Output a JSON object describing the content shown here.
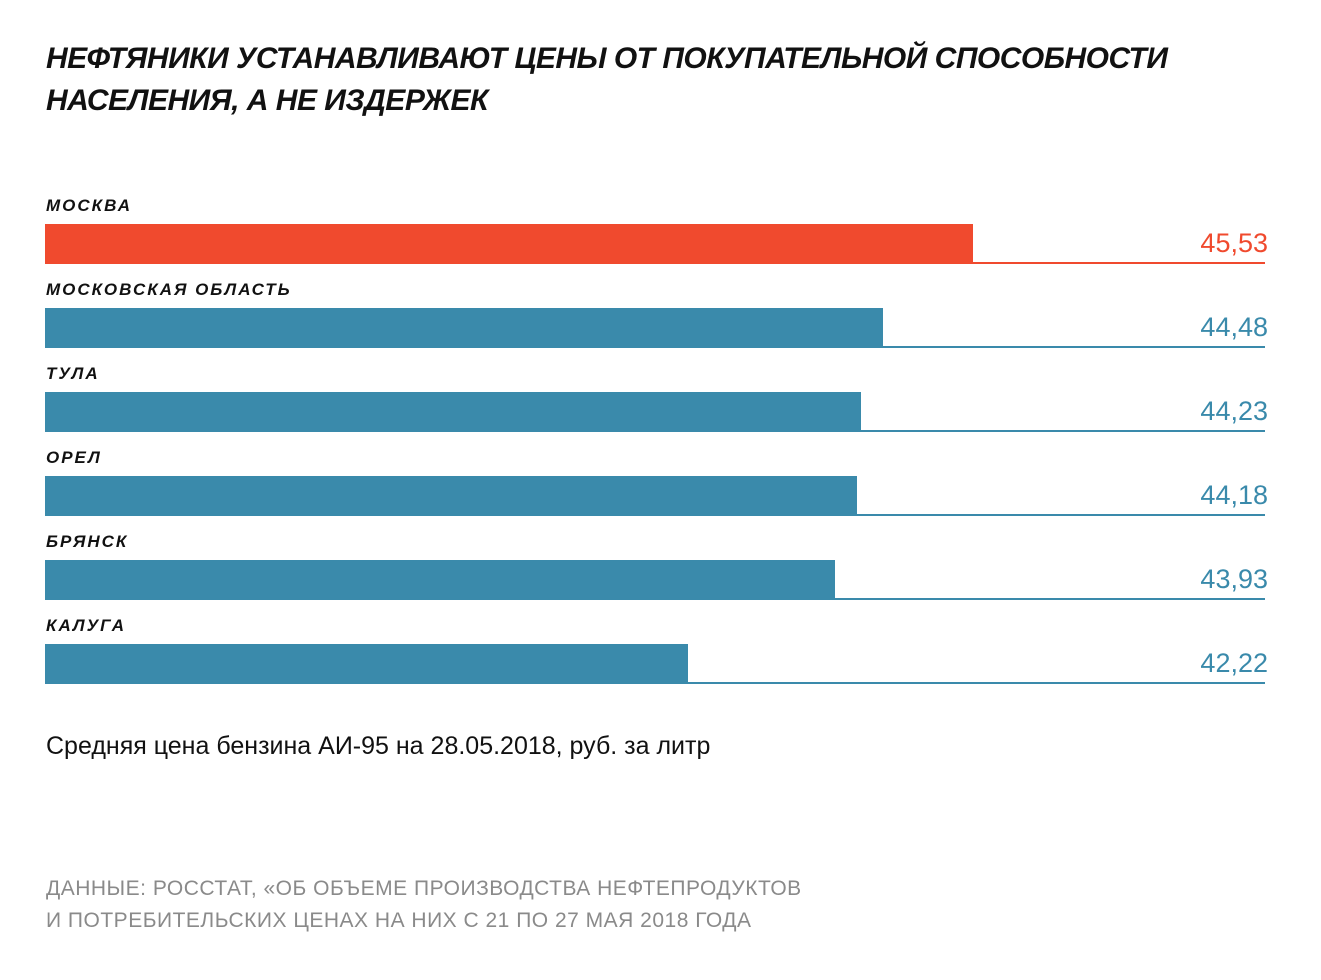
{
  "title": "НЕФТЯНИКИ УСТАНАВЛИВАЮТ ЦЕНЫ ОТ ПОКУПАТЕЛЬНОЙ СПОСОБНОСТИ НАСЕЛЕНИЯ, А НЕ ИЗДЕРЖЕК",
  "subtitle": "Средняя цена бензина АИ-95 на 28.05.2018, руб. за литр",
  "source_line1": "ДАННЫЕ: РОССТАТ, «ОБ ОБЪЕМЕ ПРОИЗВОДСТВА НЕФТЕПРОДУКТОВ",
  "source_line2": "И ПОТРЕБИТЕЛЬСКИХ ЦЕНАХ НА НИХ С 21 ПО 27 МАЯ 2018 ГОДА",
  "chart_data": {
    "type": "bar",
    "orientation": "horizontal",
    "title": "НЕФТЯНИКИ УСТАНАВЛИВАЮТ ЦЕНЫ ОТ ПОКУПАТЕЛЬНОЙ СПОСОБНОСТИ НАСЕЛЕНИЯ, А НЕ ИЗДЕРЖЕК",
    "categories": [
      "МОСКВА",
      "МОСКОВСКАЯ ОБЛАСТЬ",
      "ТУЛА",
      "ОРЕЛ",
      "БРЯНСК",
      "КАЛУГА"
    ],
    "values": [
      45.53,
      44.48,
      44.23,
      44.18,
      43.93,
      42.22
    ],
    "value_labels": [
      "45,53",
      "44,48",
      "44,23",
      "44,18",
      "43,93",
      "42,22"
    ],
    "xlim": [
      34.75,
      48.92
    ],
    "grid": false,
    "colors": {
      "highlight": "#f04a2e",
      "default": "#3a8aab"
    },
    "highlight_index": 0
  }
}
